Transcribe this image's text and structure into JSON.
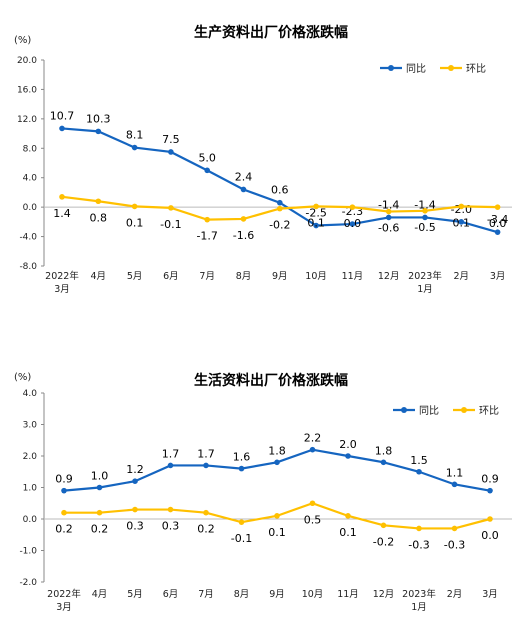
{
  "chart_data": [
    {
      "type": "line",
      "title": "生产资料出厂价格涨跌幅",
      "unit": "(%)",
      "ylim": [
        -8.0,
        20.0
      ],
      "yticks": [
        "20.0",
        "16.0",
        "12.0",
        "8.0",
        "4.0",
        "0.0",
        "-4.0",
        "-8.0"
      ],
      "categories": [
        "2022年\n3月",
        "4月",
        "5月",
        "6月",
        "7月",
        "8月",
        "9月",
        "10月",
        "11月",
        "12月",
        "2023年\n1月",
        "2月",
        "3月"
      ],
      "legend_position": "top-right",
      "series": [
        {
          "name": "同比",
          "color": "#1565C0",
          "values": [
            10.7,
            10.3,
            8.1,
            7.5,
            5.0,
            2.4,
            0.6,
            -2.5,
            -2.3,
            -1.4,
            -1.4,
            -2.0,
            -3.4
          ]
        },
        {
          "name": "环比",
          "color": "#FFC000",
          "values": [
            1.4,
            0.8,
            0.1,
            -0.1,
            -1.7,
            -1.6,
            -0.2,
            0.1,
            0.0,
            -0.6,
            -0.5,
            0.1,
            0.0
          ]
        }
      ]
    },
    {
      "type": "line",
      "title": "生活资料出厂价格涨跌幅",
      "unit": "(%)",
      "ylim": [
        -2.0,
        4.0
      ],
      "yticks": [
        "4.0",
        "3.0",
        "2.0",
        "1.0",
        "0.0",
        "-1.0",
        "-2.0"
      ],
      "categories": [
        "2022年\n3月",
        "4月",
        "5月",
        "6月",
        "7月",
        "8月",
        "9月",
        "10月",
        "11月",
        "12月",
        "2023年\n1月",
        "2月",
        "3月"
      ],
      "legend_position": "top-right",
      "series": [
        {
          "name": "同比",
          "color": "#1565C0",
          "values": [
            0.9,
            1.0,
            1.2,
            1.7,
            1.7,
            1.6,
            1.8,
            2.2,
            2.0,
            1.8,
            1.5,
            1.1,
            0.9
          ]
        },
        {
          "name": "环比",
          "color": "#FFC000",
          "values": [
            0.2,
            0.2,
            0.3,
            0.3,
            0.2,
            -0.1,
            0.1,
            0.5,
            0.1,
            -0.2,
            -0.3,
            -0.3,
            0.0
          ]
        }
      ]
    }
  ]
}
